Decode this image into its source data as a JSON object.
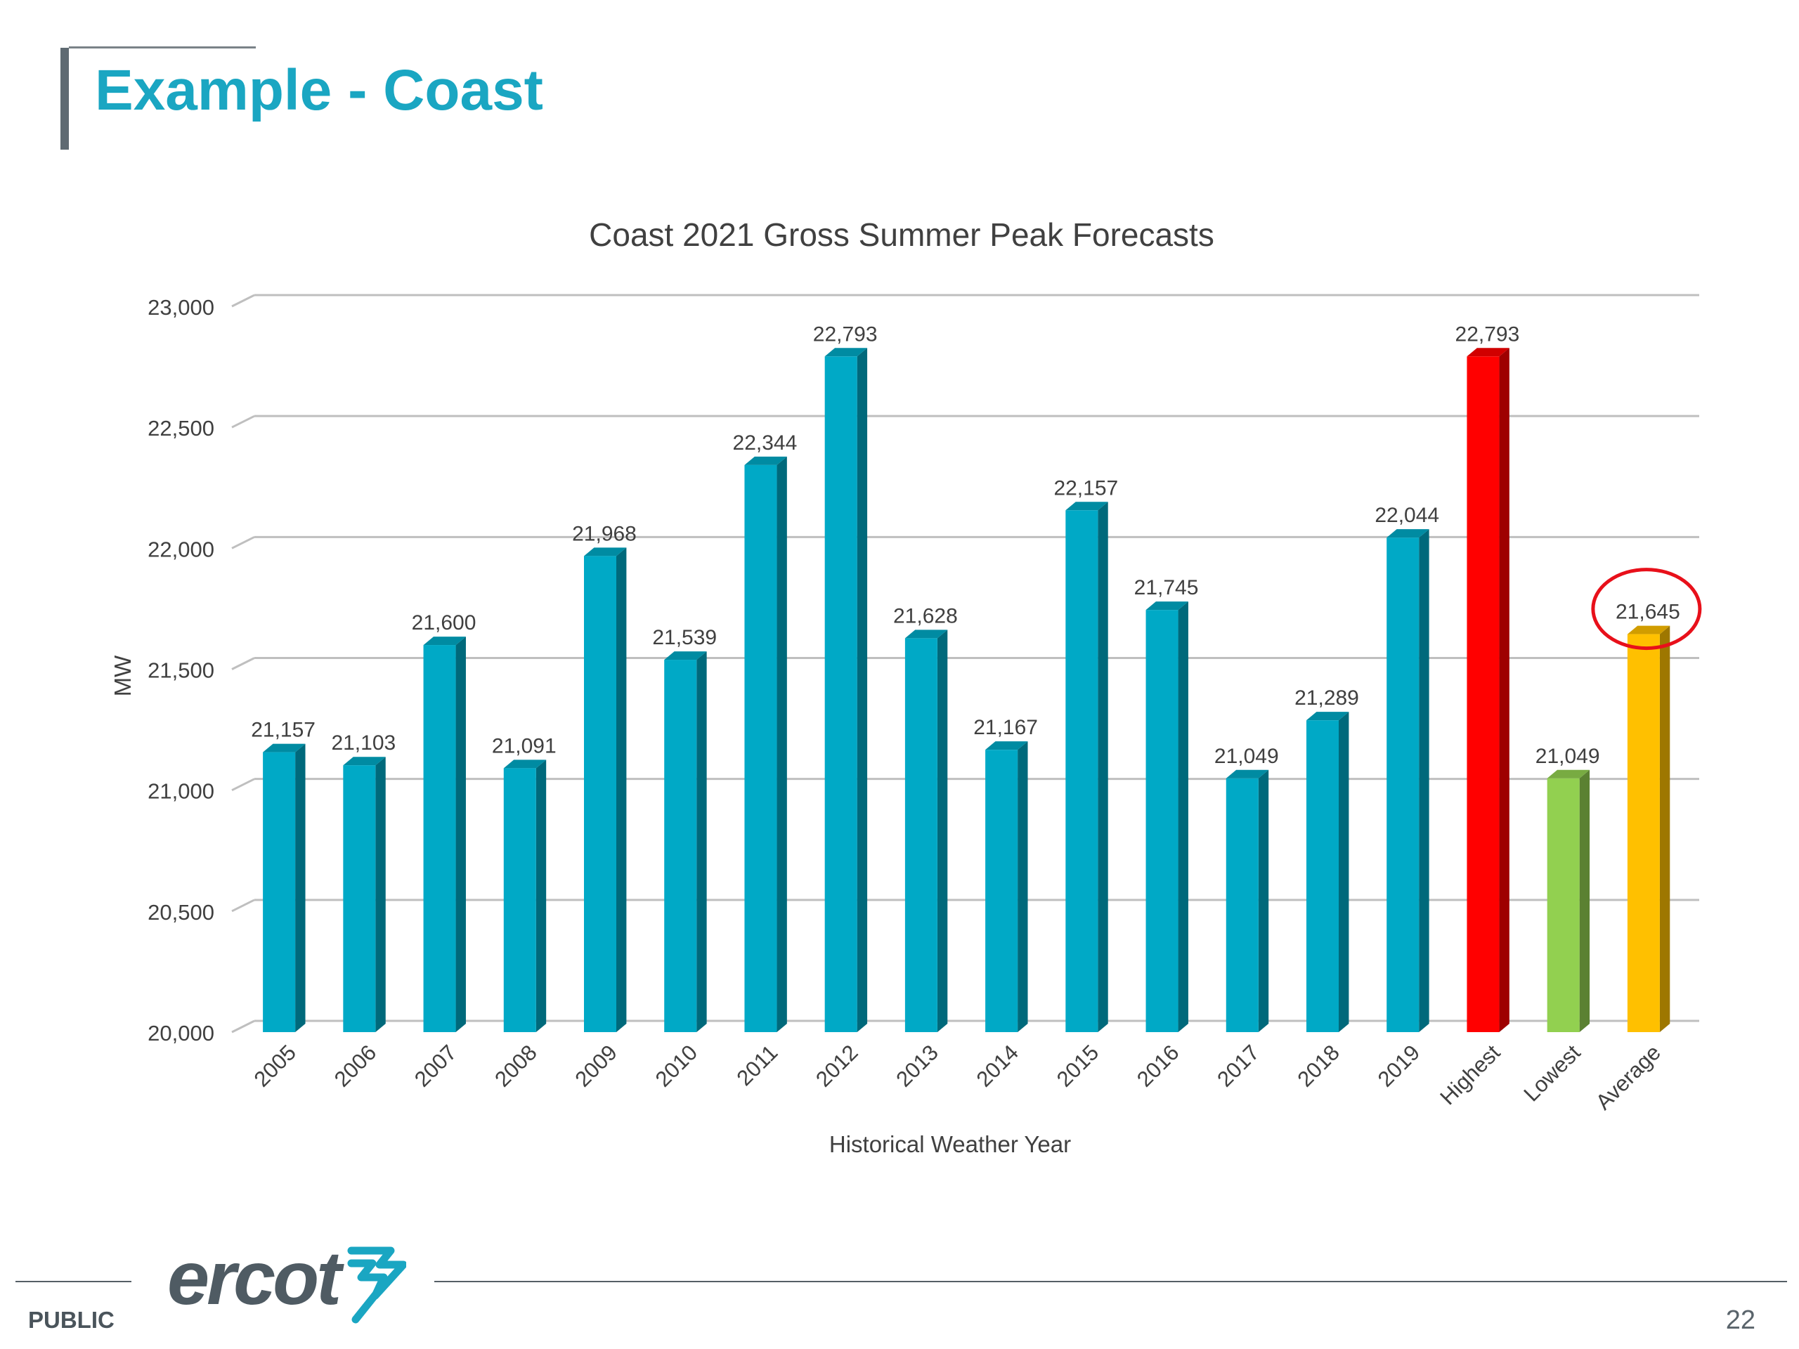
{
  "slide": {
    "title": "Example - Coast",
    "footer_label": "PUBLIC",
    "page_number": "22",
    "logo_text": "ercot"
  },
  "chart_data": {
    "type": "bar",
    "title": "Coast 2021 Gross Summer Peak Forecasts",
    "xlabel": "Historical Weather Year",
    "ylabel": "MW",
    "ylim": [
      20000,
      23000
    ],
    "yticks": [
      20000,
      20500,
      21000,
      21500,
      22000,
      22500,
      23000
    ],
    "ytick_labels": [
      "20,000",
      "20,500",
      "21,000",
      "21,500",
      "22,000",
      "22,500",
      "23,000"
    ],
    "grid": true,
    "categories": [
      "2005",
      "2006",
      "2007",
      "2008",
      "2009",
      "2010",
      "2011",
      "2012",
      "2013",
      "2014",
      "2015",
      "2016",
      "2017",
      "2018",
      "2019",
      "Highest",
      "Lowest",
      "Average"
    ],
    "values": [
      21157,
      21103,
      21600,
      21091,
      21968,
      21539,
      22344,
      22793,
      21628,
      21167,
      22157,
      21745,
      21049,
      21289,
      22044,
      22793,
      21049,
      21645
    ],
    "data_labels": [
      "21,157",
      "21,103",
      "21,600",
      "21,091",
      "21,968",
      "21,539",
      "22,344",
      "22,793",
      "21,628",
      "21,167",
      "22,157",
      "21,745",
      "21,049",
      "21,289",
      "22,044",
      "22,793",
      "21,049",
      "21,645"
    ],
    "bar_colors": [
      "#00a9c6",
      "#00a9c6",
      "#00a9c6",
      "#00a9c6",
      "#00a9c6",
      "#00a9c6",
      "#00a9c6",
      "#00a9c6",
      "#00a9c6",
      "#00a9c6",
      "#00a9c6",
      "#00a9c6",
      "#00a9c6",
      "#00a9c6",
      "#00a9c6",
      "#ff0000",
      "#92d050",
      "#ffc000"
    ],
    "highlight_index": 17,
    "highlight_color": "#e8101a"
  }
}
